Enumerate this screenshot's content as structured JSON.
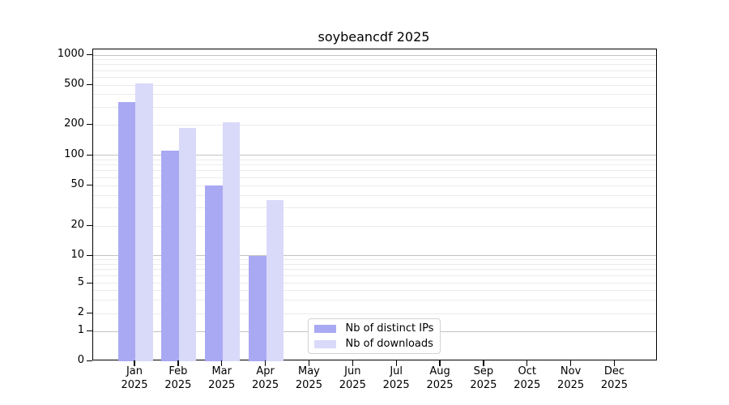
{
  "title": "soybeancdf 2025",
  "chart_data": {
    "type": "bar",
    "title": "soybeancdf 2025",
    "x_categories": [
      "Jan 2025",
      "Feb 2025",
      "Mar 2025",
      "Apr 2025",
      "May 2025",
      "Jun 2025",
      "Jul 2025",
      "Aug 2025",
      "Sep 2025",
      "Oct 2025",
      "Nov 2025",
      "Dec 2025"
    ],
    "series": [
      {
        "name": "Nb of distinct IPs",
        "color": "#a9a9f3",
        "values": [
          340,
          110,
          50,
          10,
          null,
          null,
          null,
          null,
          null,
          null,
          null,
          null
        ]
      },
      {
        "name": "Nb of downloads",
        "color": "#d9d9f9",
        "values": [
          520,
          185,
          210,
          36,
          null,
          null,
          null,
          null,
          null,
          null,
          null,
          null
        ]
      }
    ],
    "y_ticks": [
      0,
      1,
      2,
      5,
      10,
      20,
      50,
      100,
      200,
      500,
      1000
    ],
    "y_scale": "log-like with linear 0-1 segment",
    "ylim": [
      0,
      1000
    ],
    "grid": "horizontal major and minor gridlines",
    "legend": {
      "position": "inside-bottom-center"
    }
  }
}
